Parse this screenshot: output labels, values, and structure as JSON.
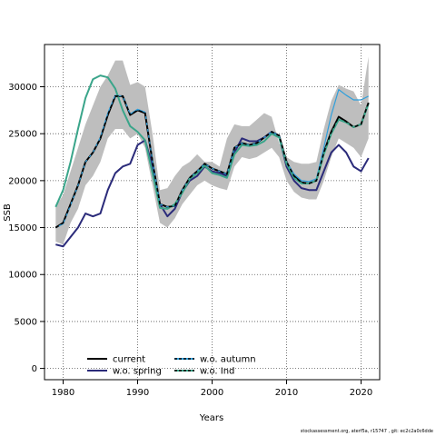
{
  "footer_text": "stockassessment.org, aterf5a, r15747 , git: ec2c2a0c6dde",
  "chart_data": {
    "type": "line",
    "title": "",
    "xlabel": "Years",
    "ylabel": "SSB",
    "xlim": [
      1977.5,
      2022.5
    ],
    "ylim": [
      -1200,
      34500
    ],
    "xticks": [
      1980,
      1990,
      2000,
      2010,
      2020
    ],
    "yticks": [
      0,
      5000,
      10000,
      15000,
      20000,
      25000,
      30000
    ],
    "grid": true,
    "legend_position": "bottom-left",
    "x": [
      1979,
      1980,
      1981,
      1982,
      1983,
      1984,
      1985,
      1986,
      1987,
      1988,
      1989,
      1990,
      1991,
      1992,
      1993,
      1994,
      1995,
      1996,
      1997,
      1998,
      1999,
      2000,
      2001,
      2002,
      2003,
      2004,
      2005,
      2006,
      2007,
      2008,
      2009,
      2010,
      2011,
      2012,
      2013,
      2014,
      2015,
      2016,
      2017,
      2018,
      2019,
      2020,
      2021
    ],
    "band": {
      "color": "#bebebe",
      "lower": [
        13500,
        13200,
        15500,
        17000,
        19500,
        20500,
        22000,
        24500,
        25500,
        25500,
        24500,
        25000,
        23500,
        19500,
        15500,
        15000,
        16000,
        17500,
        18500,
        19500,
        20000,
        19500,
        19200,
        19000,
        21500,
        22500,
        22300,
        22500,
        23000,
        23500,
        22500,
        20000,
        18800,
        18200,
        18000,
        18000,
        20000,
        22500,
        24500,
        24000,
        23500,
        22500,
        24500
      ],
      "upper": [
        17200,
        18500,
        21000,
        23500,
        26000,
        28000,
        30000,
        31200,
        32800,
        32800,
        30200,
        30500,
        30000,
        25000,
        19000,
        19200,
        20500,
        21500,
        22000,
        22800,
        22000,
        22000,
        21500,
        24500,
        26000,
        25800,
        25800,
        26500,
        27200,
        26800,
        24000,
        22500,
        22000,
        21800,
        21800,
        22000,
        25500,
        28500,
        30200,
        29800,
        29500,
        28000,
        33200
      ]
    },
    "series": [
      {
        "name": "current",
        "color": "#000000",
        "dash": "solid",
        "width": 2,
        "values": [
          15000,
          15500,
          17500,
          19500,
          22000,
          23000,
          24500,
          27000,
          29000,
          29000,
          27000,
          27500,
          27200,
          22000,
          17500,
          17200,
          17300,
          19000,
          20300,
          21000,
          21800,
          21300,
          21000,
          20700,
          23500,
          24000,
          23800,
          24000,
          24600,
          25200,
          24800,
          22000,
          20500,
          19800,
          19700,
          20000,
          23000,
          25200,
          26800,
          26300,
          25700,
          26000,
          28300
        ]
      },
      {
        "name": "w.o. spring",
        "color": "#2b2b7a",
        "dash": "solid",
        "width": 2,
        "values": [
          13200,
          13000,
          14000,
          15000,
          16500,
          16200,
          16500,
          19000,
          20800,
          21500,
          21800,
          23800,
          24300,
          21500,
          17500,
          16200,
          17000,
          18800,
          20000,
          20500,
          21500,
          21000,
          20800,
          20500,
          23000,
          24500,
          24200,
          24200,
          24600,
          25200,
          24700,
          21500,
          20000,
          19200,
          19000,
          19000,
          21000,
          23000,
          23800,
          23000,
          21500,
          21000,
          22400
        ]
      },
      {
        "name": "w.o. autumn",
        "color": "#2e9fdc",
        "dash": "solid",
        "width": 1.2,
        "values": [
          15000,
          15400,
          17400,
          19500,
          22000,
          23000,
          24600,
          27200,
          29100,
          29000,
          27100,
          27600,
          27300,
          22100,
          17500,
          17200,
          17300,
          19000,
          20300,
          21000,
          21800,
          21300,
          21000,
          20700,
          23500,
          24000,
          23800,
          24000,
          24600,
          25200,
          24800,
          22000,
          20700,
          20000,
          19900,
          20200,
          23500,
          27000,
          29700,
          29100,
          28600,
          28600,
          29000
        ]
      },
      {
        "name": "w.o. Ind",
        "color": "#3aa58a",
        "dash": "solid",
        "width": 2,
        "values": [
          17200,
          19000,
          22000,
          25500,
          28800,
          30800,
          31200,
          31000,
          29800,
          27500,
          25800,
          25200,
          24300,
          20800,
          17100,
          17000,
          17500,
          18700,
          20200,
          20800,
          21600,
          20800,
          20600,
          20300,
          22800,
          23800,
          23700,
          23800,
          24200,
          25000,
          24600,
          21800,
          20300,
          19700,
          19700,
          20000,
          22800,
          25000,
          26500,
          26200,
          25700,
          26000,
          28200
        ]
      }
    ],
    "legend": {
      "col1": [
        "current",
        "w.o. spring"
      ],
      "col2": [
        "w.o. autumn",
        "w.o. Ind"
      ]
    }
  }
}
